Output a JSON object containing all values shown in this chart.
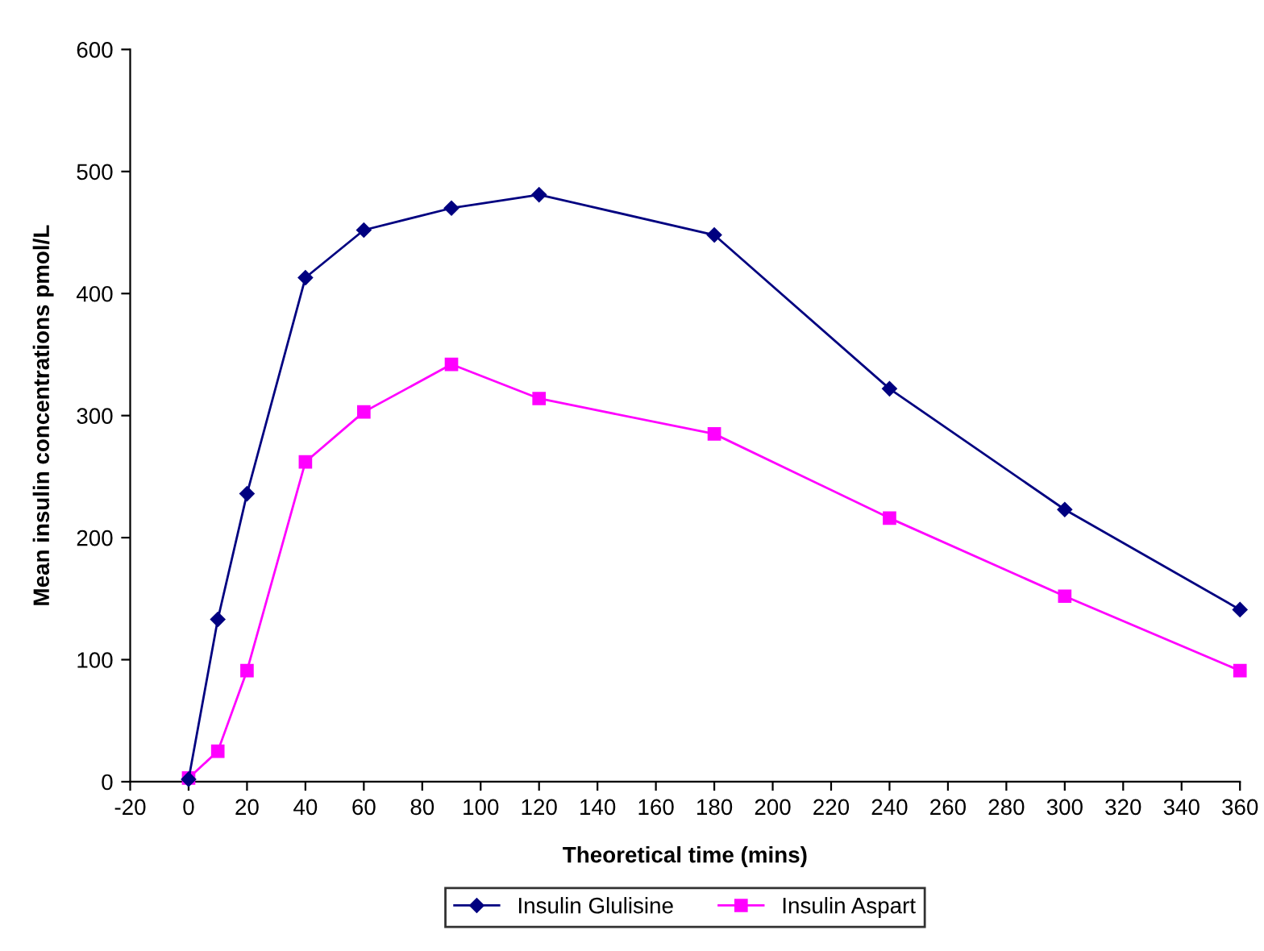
{
  "chart_data": {
    "type": "line",
    "xlabel": "Theoretical time (mins)",
    "ylabel": "Mean insulin concentrations pmol/L",
    "x": [
      0,
      10,
      20,
      40,
      60,
      90,
      120,
      180,
      240,
      300,
      360
    ],
    "series": [
      {
        "name": "Insulin Glulisine",
        "color": "#000080",
        "marker": "diamond",
        "values": [
          2,
          133,
          236,
          413,
          452,
          470,
          481,
          448,
          322,
          223,
          141
        ]
      },
      {
        "name": "Insulin Aspart",
        "color": "#ff00ff",
        "marker": "square",
        "values": [
          3,
          25,
          91,
          262,
          303,
          342,
          314,
          285,
          216,
          152,
          91
        ]
      }
    ],
    "xlim": [
      -20,
      360
    ],
    "xticks": [
      -20,
      0,
      20,
      40,
      60,
      80,
      100,
      120,
      140,
      160,
      180,
      200,
      220,
      240,
      260,
      280,
      300,
      320,
      340,
      360
    ],
    "ylim": [
      0,
      600
    ],
    "yticks": [
      0,
      100,
      200,
      300,
      400,
      500,
      600
    ],
    "grid": false,
    "legend": "bottom",
    "line_style": "solid"
  }
}
